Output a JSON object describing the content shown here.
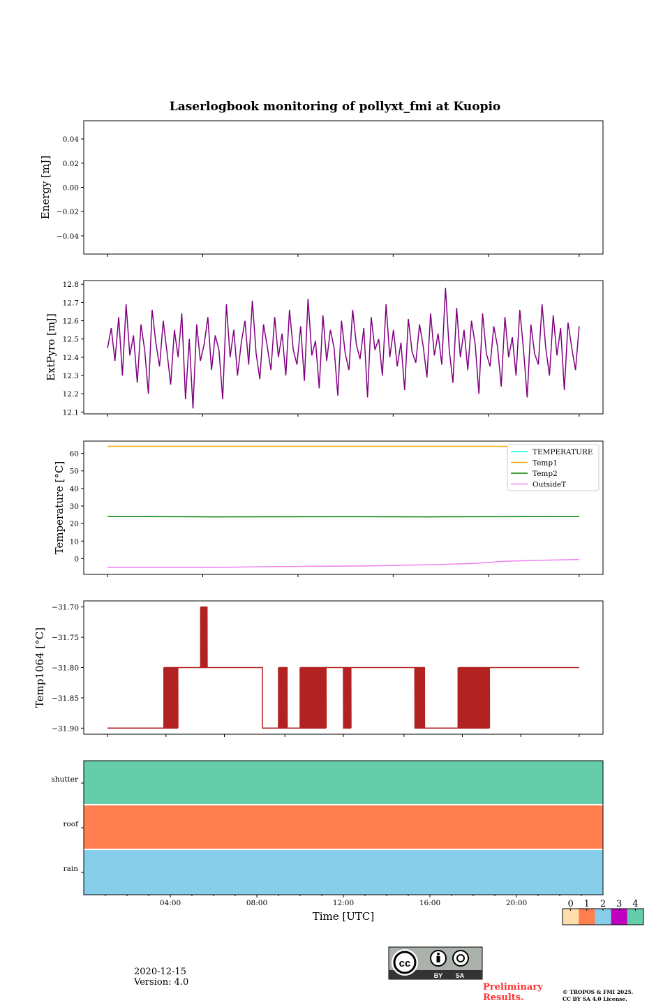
{
  "title": "Laserlogbook monitoring of pollyxt_fmi at Kuopio",
  "chart_data": [
    {
      "type": "line",
      "ylabel": "Energy [mJ]",
      "ylim": [
        -0.055,
        0.055
      ],
      "yticks": [
        "0.04",
        "0.02",
        "0.00",
        "−0.02",
        "−0.04"
      ],
      "ytick_values": [
        0.04,
        0.02,
        0,
        -0.02,
        -0.04
      ],
      "series": []
    },
    {
      "type": "line",
      "ylabel": "ExtPyro [mJ]",
      "ylim": [
        12.09,
        12.82
      ],
      "yticks": [
        "12.8",
        "12.7",
        "12.6",
        "12.5",
        "12.4",
        "12.3",
        "12.2",
        "12.1"
      ],
      "ytick_values": [
        12.8,
        12.7,
        12.6,
        12.5,
        12.4,
        12.3,
        12.2,
        12.1
      ],
      "x_range_hours": [
        1.1,
        22.9
      ],
      "color": "#800080",
      "values": [
        12.45,
        12.56,
        12.38,
        12.62,
        12.3,
        12.69,
        12.41,
        12.52,
        12.26,
        12.58,
        12.44,
        12.2,
        12.66,
        12.48,
        12.35,
        12.6,
        12.43,
        12.25,
        12.55,
        12.4,
        12.64,
        12.17,
        12.5,
        12.12,
        12.58,
        12.38,
        12.47,
        12.62,
        12.33,
        12.52,
        12.44,
        12.17,
        12.69,
        12.4,
        12.55,
        12.3,
        12.48,
        12.6,
        12.36,
        12.71,
        12.42,
        12.28,
        12.58,
        12.46,
        12.33,
        12.62,
        12.4,
        12.53,
        12.3,
        12.66,
        12.44,
        12.36,
        12.57,
        12.27,
        12.72,
        12.41,
        12.49,
        12.23,
        12.63,
        12.38,
        12.55,
        12.45,
        12.19,
        12.6,
        12.42,
        12.33,
        12.66,
        12.47,
        12.39,
        12.56,
        12.18,
        12.62,
        12.44,
        12.5,
        12.3,
        12.69,
        12.4,
        12.55,
        12.35,
        12.48,
        12.22,
        12.61,
        12.43,
        12.37,
        12.58,
        12.46,
        12.29,
        12.64,
        12.41,
        12.53,
        12.36,
        12.78,
        12.44,
        12.26,
        12.67,
        12.4,
        12.55,
        12.33,
        12.6,
        12.47,
        12.2,
        12.64,
        12.42,
        12.35,
        12.57,
        12.46,
        12.24,
        12.62,
        12.4,
        12.51,
        12.3,
        12.66,
        12.44,
        12.18,
        12.58,
        12.42,
        12.36,
        12.69,
        12.45,
        12.3,
        12.63,
        12.41,
        12.56,
        12.22,
        12.59,
        12.45,
        12.33,
        12.57
      ]
    },
    {
      "type": "line",
      "ylabel": "Temperature [°C]",
      "ylim": [
        -9,
        67
      ],
      "yticks": [
        "60",
        "50",
        "40",
        "30",
        "20",
        "10",
        "0"
      ],
      "ytick_values": [
        60,
        50,
        40,
        30,
        20,
        10,
        0
      ],
      "legend_position": "top-right",
      "series": [
        {
          "name": "TEMPERATURE",
          "color": "#00FFFF",
          "x": [],
          "y": []
        },
        {
          "name": "Temp1",
          "color": "#FFA500",
          "x": [
            1.1,
            22.9
          ],
          "y": [
            64,
            64
          ]
        },
        {
          "name": "Temp2",
          "color": "#008000",
          "x": [
            1.1,
            6,
            12,
            16,
            22.9
          ],
          "y": [
            24,
            23.8,
            23.9,
            23.8,
            24
          ]
        },
        {
          "name": "OutsideT",
          "color": "#EE82EE",
          "x": [
            1.1,
            6,
            10,
            13,
            16,
            18,
            19.5,
            21,
            22.9
          ],
          "y": [
            -5,
            -5,
            -4.4,
            -4.2,
            -3.5,
            -2.8,
            -1.5,
            -1,
            -0.5
          ]
        }
      ]
    },
    {
      "type": "line",
      "ylabel": "Temp1064 [°C]",
      "ylim": [
        -31.91,
        -31.69
      ],
      "yticks": [
        "−31.70",
        "−31.75",
        "−31.80",
        "−31.85",
        "−31.90"
      ],
      "ytick_values": [
        -31.7,
        -31.75,
        -31.8,
        -31.85,
        -31.9
      ],
      "color": "#B22222",
      "segments": [
        {
          "from": 1.1,
          "to": 3.7,
          "value": -31.9
        },
        {
          "from": 3.7,
          "to": 4.35,
          "osc": [
            -31.8,
            -31.9
          ]
        },
        {
          "from": 4.35,
          "to": 5.4,
          "value": -31.8
        },
        {
          "from": 5.4,
          "to": 5.7,
          "osc": [
            -31.7,
            -31.8
          ]
        },
        {
          "from": 5.7,
          "to": 8.26,
          "value": -31.8
        },
        {
          "from": 8.26,
          "to": 9.0,
          "value": -31.9
        },
        {
          "from": 9.0,
          "to": 9.4,
          "osc": [
            -31.8,
            -31.9
          ]
        },
        {
          "from": 9.4,
          "to": 10.0,
          "value": -31.9
        },
        {
          "from": 10.0,
          "to": 11.2,
          "osc": [
            -31.8,
            -31.9
          ]
        },
        {
          "from": 11.2,
          "to": 12.0,
          "value": -31.8
        },
        {
          "from": 12.0,
          "to": 12.35,
          "osc": [
            -31.8,
            -31.9
          ]
        },
        {
          "from": 12.35,
          "to": 15.3,
          "value": -31.8
        },
        {
          "from": 15.3,
          "to": 15.75,
          "osc": [
            -31.8,
            -31.9
          ]
        },
        {
          "from": 15.75,
          "to": 17.3,
          "value": -31.9
        },
        {
          "from": 17.3,
          "to": 18.75,
          "osc": [
            -31.8,
            -31.9
          ]
        },
        {
          "from": 18.75,
          "to": 22.9,
          "value": -31.8
        }
      ]
    },
    {
      "type": "heatmap",
      "rows": [
        "shutter",
        "roof",
        "rain"
      ],
      "row_values": [
        4,
        1,
        2
      ],
      "xlabel": "Time [UTC]",
      "xticks": [
        "04:00",
        "08:00",
        "12:00",
        "16:00",
        "20:00"
      ],
      "xtick_hours": [
        4,
        8,
        12,
        16,
        20
      ],
      "xlim_hours": [
        0,
        24
      ],
      "colorbar": {
        "labels": [
          "0",
          "1",
          "2",
          "3",
          "4"
        ],
        "colors": [
          "#FFDEAD",
          "#FF7F50",
          "#87CEEB",
          "#C000C0",
          "#66CDAA"
        ]
      }
    }
  ],
  "footer": {
    "date": "2020-12-15",
    "version": "Version: 4.0",
    "preliminary_1": "Preliminary",
    "preliminary_2": "Results.",
    "copyright_1": "© TROPOS & FMI 2025.",
    "copyright_2": "CC BY SA 4.0 License.",
    "cc_by": "BY",
    "cc_sa": "SA",
    "cc_logo": "cc"
  }
}
